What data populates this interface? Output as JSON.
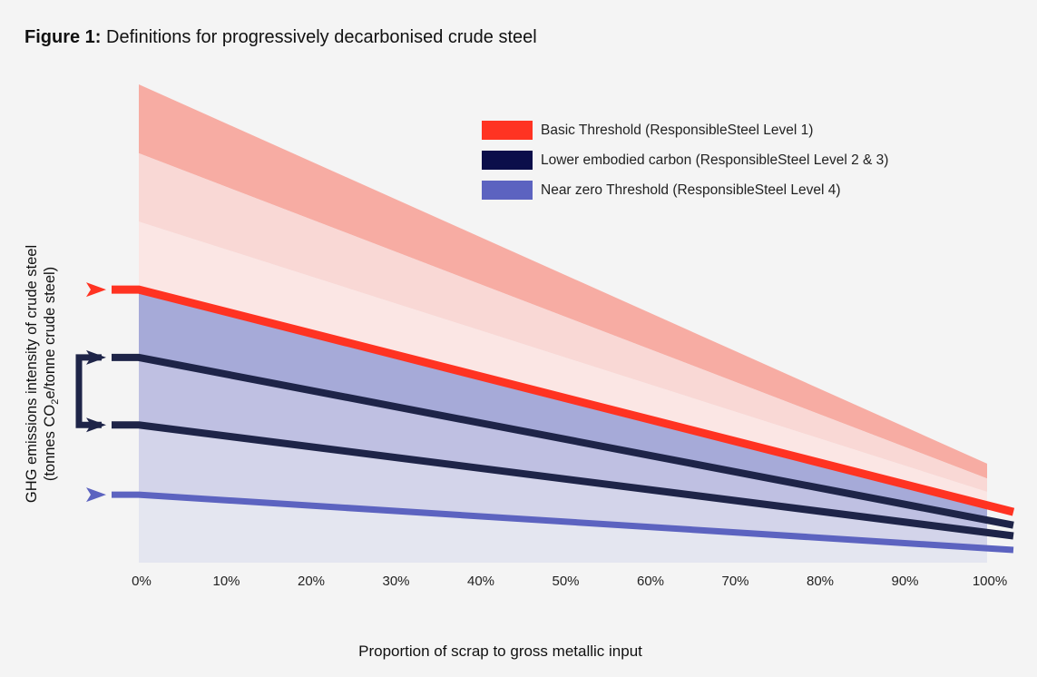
{
  "figure": {
    "label": "Figure 1:",
    "title": "Definitions for progressively decarbonised crude steel"
  },
  "chart_data": {
    "type": "area",
    "title": "Definitions for progressively decarbonised crude steel",
    "xlabel": "Proportion of scrap to gross metallic input",
    "ylabel_line1": "GHG emissions intensity of crude steel",
    "ylabel_line2_pre": "(tonnes CO",
    "ylabel_line2_sub": "2",
    "ylabel_line2_post": "e/tonne crude steel)",
    "x_ticks": [
      "0%",
      "10%",
      "20%",
      "30%",
      "40%",
      "50%",
      "60%",
      "70%",
      "80%",
      "90%",
      "100%"
    ],
    "xlim": [
      0,
      100
    ],
    "ylim": [
      0,
      100
    ],
    "y_ticks_shown": false,
    "grid": false,
    "legend_placement": "top-right",
    "bands": [
      {
        "y_top": [
          100,
          20.7
        ],
        "y_bottom": [
          85.6,
          17.6
        ],
        "color": "#f7aca3"
      },
      {
        "y_top": [
          85.6,
          17.6
        ],
        "y_bottom": [
          71.3,
          14.8
        ],
        "color": "#f9d8d5"
      },
      {
        "y_top": [
          71.3,
          14.8
        ],
        "y_bottom": [
          57.1,
          12.0
        ],
        "color": "#fbe6e4"
      },
      {
        "y_top": [
          57.1,
          12.0
        ],
        "y_bottom": [
          42.9,
          8.9
        ],
        "color": "#a6aad8"
      },
      {
        "y_top": [
          42.9,
          8.9
        ],
        "y_bottom": [
          28.8,
          6.3
        ],
        "color": "#bfc0e2"
      },
      {
        "y_top": [
          28.8,
          6.3
        ],
        "y_bottom": [
          14.2,
          3.0
        ],
        "color": "#d3d4ea"
      },
      {
        "y_top": [
          14.2,
          3.0
        ],
        "y_bottom": [
          0,
          0
        ],
        "color": "#e4e6f0"
      }
    ],
    "series": [
      {
        "name": "Basic Threshold (ResponsibleSteel Level 1)",
        "x": [
          0,
          100
        ],
        "y": [
          57.1,
          12.0
        ],
        "color": "#ff3322",
        "legend_color": "#ff3322"
      },
      {
        "name": "Lower embodied carbon (ResponsibleSteel Level 2 & 3)",
        "x": [
          0,
          100
        ],
        "y": [
          42.9,
          8.9
        ],
        "color": "#1e2448",
        "legend_color": "#0b0e4a"
      },
      {
        "name": "Lower embodied carbon (ResponsibleSteel Level 2 & 3)",
        "x": [
          0,
          100
        ],
        "y": [
          28.8,
          6.3
        ],
        "color": "#1e2448",
        "legend_color": "#0b0e4a",
        "in_legend": false
      },
      {
        "name": "Near zero Threshold (ResponsibleSteel Level 4)",
        "x": [
          0,
          100
        ],
        "y": [
          14.2,
          3.0
        ],
        "color": "#5c63c0",
        "legend_color": "#5c63c0"
      }
    ],
    "legend": [
      {
        "label": "Basic Threshold (ResponsibleSteel Level 1)",
        "color": "#ff3322"
      },
      {
        "label": "Lower embodied carbon (ResponsibleSteel Level 2 & 3)",
        "color": "#0b0e4a"
      },
      {
        "label": "Near zero Threshold (ResponsibleSteel Level 4)",
        "color": "#5c63c0"
      }
    ]
  }
}
